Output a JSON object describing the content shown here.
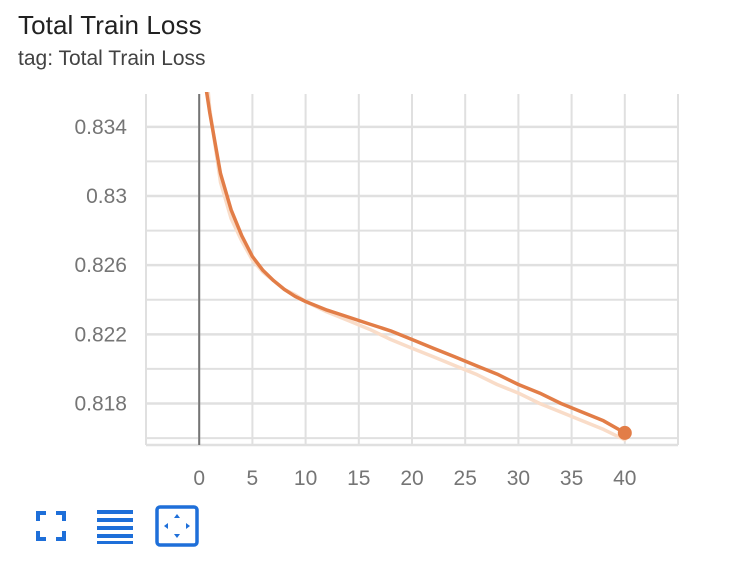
{
  "card": {
    "title": "Total Train Loss",
    "subtitle": "tag: Total Train Loss"
  },
  "toolbar": {
    "buttons": [
      {
        "icon": "fullscreen-icon"
      },
      {
        "icon": "toggle-log-scale-icon"
      },
      {
        "icon": "fit-domain-icon"
      }
    ]
  },
  "colors": {
    "main_line": "#e27d47",
    "smoothed_shadow": "#f9dcc8",
    "grid": "#e0e0e0",
    "zero_axis": "#757575",
    "toolbar_accent": "#1e6fd9"
  },
  "chart_data": {
    "type": "line",
    "title": "Total Train Loss",
    "xlabel": "",
    "ylabel": "",
    "xlim": [
      -5,
      45
    ],
    "ylim": [
      0.8156,
      0.8359
    ],
    "x_ticks": [
      0,
      5,
      10,
      15,
      20,
      25,
      30,
      35,
      40
    ],
    "x_tick_labels": [
      "0",
      "5",
      "10",
      "15",
      "20",
      "25",
      "30",
      "35",
      "40"
    ],
    "y_ticks": [
      0.818,
      0.822,
      0.826,
      0.83,
      0.834
    ],
    "y_tick_labels": [
      "0.818",
      "0.822",
      "0.826",
      "0.83",
      "0.834"
    ],
    "grid": true,
    "series": [
      {
        "role": "smoothed",
        "x": [
          0.8,
          1,
          2,
          3,
          4,
          5,
          6,
          7,
          8,
          9,
          10,
          12,
          14,
          16,
          18,
          20,
          22,
          24,
          26,
          28,
          30,
          32,
          34,
          36,
          38,
          40
        ],
        "y": [
          0.8364,
          0.835,
          0.8308,
          0.8287,
          0.8274,
          0.8263,
          0.8256,
          0.8251,
          0.8246,
          0.8243,
          0.8239,
          0.8233,
          0.8228,
          0.8223,
          0.8217,
          0.8212,
          0.8207,
          0.8202,
          0.8197,
          0.8191,
          0.8186,
          0.818,
          0.8175,
          0.817,
          0.8165,
          0.8159
        ]
      },
      {
        "role": "raw",
        "x": [
          0.6,
          1,
          2,
          3,
          4,
          5,
          6,
          7,
          8,
          9,
          10,
          12,
          14,
          16,
          18,
          20,
          22,
          24,
          26,
          28,
          30,
          32,
          34,
          36,
          38,
          40
        ],
        "y": [
          0.8364,
          0.8348,
          0.8313,
          0.8292,
          0.8277,
          0.8265,
          0.8257,
          0.8251,
          0.8246,
          0.8242,
          0.8239,
          0.8234,
          0.823,
          0.8226,
          0.8222,
          0.8217,
          0.8212,
          0.8207,
          0.8202,
          0.8197,
          0.8191,
          0.8186,
          0.818,
          0.8175,
          0.817,
          0.8163
        ]
      }
    ]
  }
}
